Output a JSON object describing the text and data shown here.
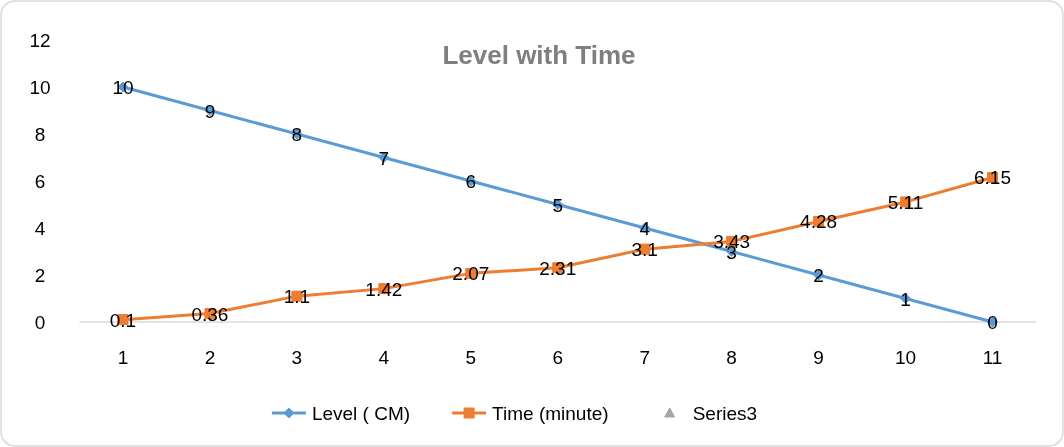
{
  "chart_data": {
    "type": "line",
    "title": "Level with Time",
    "categories": [
      "1",
      "2",
      "3",
      "4",
      "5",
      "6",
      "7",
      "8",
      "9",
      "10",
      "11"
    ],
    "series": [
      {
        "name": "Level ( CM)",
        "color": "#5b9bd5",
        "marker": "diamond",
        "values": [
          10,
          9,
          8,
          7,
          6,
          5,
          4,
          3,
          2,
          1,
          0
        ]
      },
      {
        "name": "Time (minute)",
        "color": "#ed7d31",
        "marker": "square",
        "values": [
          0.1,
          0.36,
          1.1,
          1.42,
          2.07,
          2.31,
          3.1,
          3.43,
          4.28,
          5.11,
          6.15
        ]
      },
      {
        "name": "Series3",
        "color": "#a5a5a5",
        "type": "scatter",
        "marker": "triangle",
        "values": [
          null,
          null,
          null,
          null,
          null,
          null,
          null,
          null,
          null,
          null,
          null
        ]
      }
    ],
    "ylim": [
      0,
      12
    ],
    "yticks": [
      0,
      2,
      4,
      6,
      8,
      10,
      12
    ],
    "grid": false,
    "legend": "bottom",
    "data_labels": true
  }
}
